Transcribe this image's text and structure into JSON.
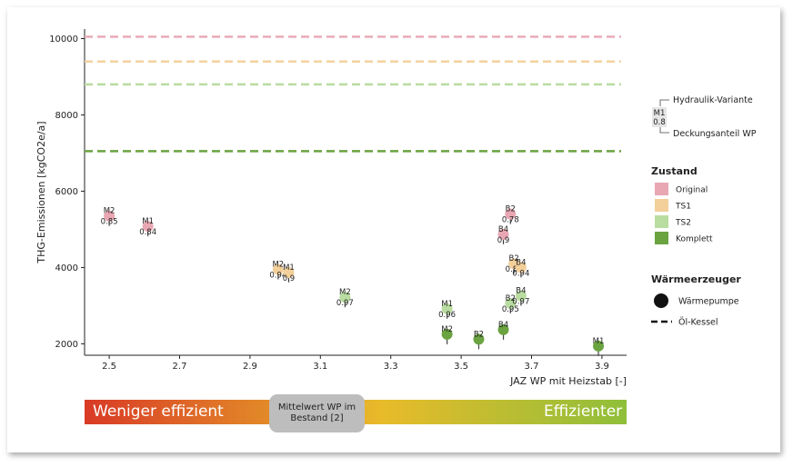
{
  "chart_data": {
    "type": "scatter",
    "title": "",
    "xlabel": "JAZ WP mit Heizstab [-]",
    "ylabel": "THG-Emissionen [kgCO2e/a]",
    "xlim": [
      2.43,
      3.97
    ],
    "ylim": [
      1700,
      10250
    ],
    "x_ticks": [
      2.5,
      2.7,
      2.9,
      3.1,
      3.3,
      3.5,
      3.7,
      3.9
    ],
    "x_tick_labels": [
      "2.5",
      "2.7",
      "2.9",
      "3.1",
      "3.3",
      "3.5",
      "3.7",
      "3.9"
    ],
    "y_ticks": [
      2000,
      4000,
      6000,
      8000,
      10000
    ],
    "y_tick_labels": [
      "2000",
      "4000",
      "6000",
      "8000",
      "10000"
    ],
    "dashed_lines": [
      {
        "zustand": "Original",
        "y": 10050,
        "color": "#e8a7b3"
      },
      {
        "zustand": "TS1",
        "y": 9400,
        "color": "#f3cf9a"
      },
      {
        "zustand": "TS2",
        "y": 8800,
        "color": "#b9dca0"
      },
      {
        "zustand": "Komplett",
        "y": 7050,
        "color": "#6aa340"
      }
    ],
    "points": [
      {
        "variant": "M2",
        "share": "0.85",
        "x": 2.5,
        "y": 5350,
        "zustand": "Original"
      },
      {
        "variant": "M1",
        "share": "0.84",
        "x": 2.61,
        "y": 5080,
        "zustand": "Original"
      },
      {
        "variant": "B2",
        "share": "0.78",
        "x": 3.64,
        "y": 5400,
        "zustand": "Original"
      },
      {
        "variant": "B4",
        "share": "0.9",
        "x": 3.62,
        "y": 4870,
        "zustand": "Original"
      },
      {
        "variant": "M2",
        "share": "0.94",
        "x": 2.98,
        "y": 3950,
        "zustand": "TS1"
      },
      {
        "variant": "M1",
        "share": "0.9",
        "x": 3.01,
        "y": 3870,
        "zustand": "TS1"
      },
      {
        "variant": "B2",
        "share": "0.87",
        "x": 3.65,
        "y": 4100,
        "zustand": "TS1"
      },
      {
        "variant": "B4",
        "share": "0.94",
        "x": 3.67,
        "y": 4000,
        "zustand": "TS1"
      },
      {
        "variant": "M2",
        "share": "0.97",
        "x": 3.17,
        "y": 3220,
        "zustand": "TS2"
      },
      {
        "variant": "M1",
        "share": "0.96",
        "x": 3.46,
        "y": 2920,
        "zustand": "TS2"
      },
      {
        "variant": "B2",
        "share": "0.95",
        "x": 3.64,
        "y": 3060,
        "zustand": "TS2"
      },
      {
        "variant": "B4",
        "share": "0.97",
        "x": 3.67,
        "y": 3260,
        "zustand": "TS2"
      },
      {
        "variant": "M2",
        "share": "",
        "x": 3.46,
        "y": 2250,
        "zustand": "Komplett"
      },
      {
        "variant": "B2",
        "share": "",
        "x": 3.55,
        "y": 2120,
        "zustand": "Komplett"
      },
      {
        "variant": "B4",
        "share": "",
        "x": 3.62,
        "y": 2370,
        "zustand": "Komplett"
      },
      {
        "variant": "M1",
        "share": "",
        "x": 3.89,
        "y": 1940,
        "zustand": "Komplett"
      }
    ],
    "legend": {
      "key_variant": "M1",
      "key_share": "0.8",
      "key_variant_label": "Hydraulik-Variante",
      "key_share_label": "Deckungsanteil WP",
      "zustand_title": "Zustand",
      "zustand_items": [
        {
          "label": "Original",
          "color": "#e8a7b3"
        },
        {
          "label": "TS1",
          "color": "#f3cf9a"
        },
        {
          "label": "TS2",
          "color": "#b9dca0"
        },
        {
          "label": "Komplett",
          "color": "#6aa340"
        }
      ],
      "erzeuger_title": "Wärmeerzeuger",
      "erzeuger_items": [
        {
          "label": "Wärmepumpe",
          "symbol": "circle"
        },
        {
          "label": "Öl-Kessel",
          "symbol": "dashed-line"
        }
      ]
    }
  },
  "efficiency_bar": {
    "left_label": "Weniger effizient",
    "right_label": "Effizienter",
    "middle_label": "Mittelwert WP im Bestand [2]",
    "colors": [
      "#d93a26",
      "#e8bb2a",
      "#8fbf3a"
    ]
  }
}
